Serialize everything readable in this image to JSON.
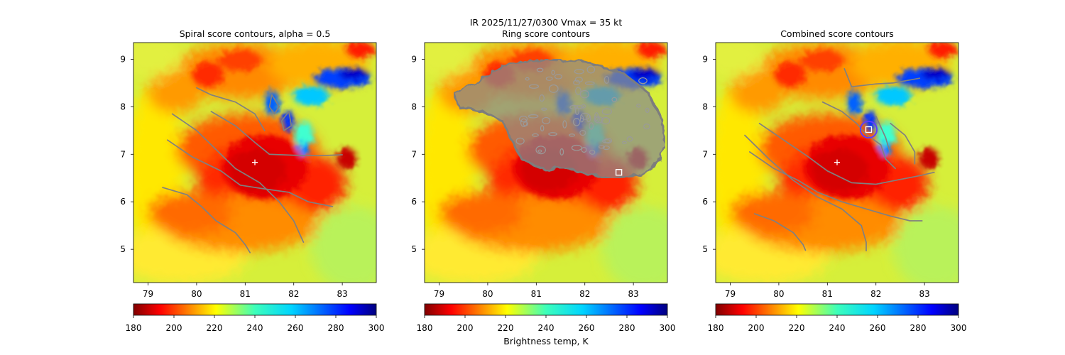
{
  "figure": {
    "suptitle_line1": "IR  2025/11/27/0300    Vmax = 35 kt"
  },
  "chart_data": [
    {
      "type": "heatmap",
      "title": "Spiral score contours, alpha =  0.5",
      "xlim": [
        78.7,
        83.7
      ],
      "ylim": [
        4.3,
        9.35
      ],
      "xticks": [
        "79",
        "80",
        "81",
        "82",
        "83"
      ],
      "yticks": [
        "5",
        "6",
        "7",
        "8",
        "9"
      ],
      "center_marker": {
        "x": 81.2,
        "y": 6.83,
        "symbol": "+"
      },
      "contours": [
        [
          [
            80.3,
            7.9
          ],
          [
            80.8,
            7.6
          ],
          [
            81.2,
            7.25
          ],
          [
            81.5,
            7.0
          ],
          [
            82.0,
            6.98
          ],
          [
            82.5,
            6.97
          ],
          [
            83.0,
            6.99
          ]
        ],
        [
          [
            79.4,
            7.3
          ],
          [
            79.9,
            6.95
          ],
          [
            80.5,
            6.65
          ],
          [
            80.9,
            6.35
          ],
          [
            81.4,
            6.27
          ],
          [
            81.9,
            6.2
          ],
          [
            82.3,
            6.0
          ],
          [
            82.8,
            5.9
          ]
        ],
        [
          [
            79.3,
            6.3
          ],
          [
            79.8,
            6.15
          ],
          [
            80.1,
            5.9
          ],
          [
            80.4,
            5.6
          ],
          [
            80.8,
            5.35
          ],
          [
            81.0,
            5.1
          ],
          [
            81.1,
            4.93
          ]
        ],
        [
          [
            79.5,
            7.85
          ],
          [
            80.0,
            7.5
          ],
          [
            80.4,
            7.1
          ],
          [
            80.8,
            6.7
          ],
          [
            81.3,
            6.4
          ],
          [
            81.7,
            6.0
          ],
          [
            82.0,
            5.6
          ],
          [
            82.2,
            5.15
          ]
        ],
        [
          [
            80.0,
            8.4
          ],
          [
            80.3,
            8.25
          ],
          [
            80.8,
            8.1
          ],
          [
            81.2,
            7.85
          ],
          [
            81.4,
            7.5
          ]
        ],
        [
          [
            81.55,
            8.25
          ],
          [
            81.7,
            8.0
          ],
          [
            81.6,
            7.85
          ],
          [
            81.5,
            8.0
          ],
          [
            81.55,
            8.25
          ]
        ],
        [
          [
            81.9,
            7.9
          ],
          [
            81.95,
            7.6
          ],
          [
            81.8,
            7.5
          ],
          [
            81.75,
            7.7
          ],
          [
            81.9,
            7.9
          ]
        ]
      ],
      "colorbar": {
        "range": [
          180,
          300
        ],
        "ticks": [
          "180",
          "200",
          "220",
          "240",
          "260",
          "280",
          "300"
        ],
        "label": ""
      }
    },
    {
      "type": "heatmap",
      "title": "Ring score contours",
      "xlim": [
        78.7,
        83.7
      ],
      "ylim": [
        4.3,
        9.35
      ],
      "xticks": [
        "79",
        "80",
        "81",
        "82",
        "83"
      ],
      "yticks": [
        "5",
        "6",
        "7",
        "8",
        "9"
      ],
      "square_marker": {
        "x": 82.7,
        "y": 6.62,
        "symbol": "square"
      },
      "ring_region": {
        "outline": [
          [
            79.3,
            8.3
          ],
          [
            79.9,
            8.6
          ],
          [
            80.4,
            8.9
          ],
          [
            81.2,
            9.0
          ],
          [
            82.0,
            8.95
          ],
          [
            82.8,
            8.7
          ],
          [
            83.3,
            8.3
          ],
          [
            83.6,
            7.7
          ],
          [
            83.65,
            7.2
          ],
          [
            83.5,
            6.8
          ],
          [
            83.1,
            6.55
          ],
          [
            82.5,
            6.5
          ],
          [
            82.0,
            6.6
          ],
          [
            81.6,
            6.7
          ],
          [
            81.1,
            6.7
          ],
          [
            80.7,
            6.9
          ],
          [
            80.5,
            7.3
          ],
          [
            80.3,
            7.7
          ],
          [
            79.9,
            7.9
          ],
          [
            79.4,
            8.0
          ]
        ],
        "fill_color": "#8a8a8a"
      },
      "colorbar": {
        "range": [
          180,
          300
        ],
        "ticks": [
          "180",
          "200",
          "220",
          "240",
          "260",
          "280",
          "300"
        ],
        "label": "Brightness temp, K"
      }
    },
    {
      "type": "heatmap",
      "title": "Combined score contours",
      "xlim": [
        78.7,
        83.7
      ],
      "ylim": [
        4.3,
        9.35
      ],
      "xticks": [
        "79",
        "80",
        "81",
        "82",
        "83"
      ],
      "yticks": [
        "5",
        "6",
        "7",
        "8",
        "9"
      ],
      "center_marker": {
        "x": 81.2,
        "y": 6.83,
        "symbol": "+"
      },
      "square_marker": {
        "x": 81.85,
        "y": 7.52,
        "symbol": "square"
      },
      "circle_marker": {
        "x": 81.85,
        "y": 7.52,
        "radius": 0.17,
        "color": "#5b3cff"
      },
      "contours": [
        [
          [
            79.6,
            7.65
          ],
          [
            80.1,
            7.3
          ],
          [
            80.6,
            6.95
          ],
          [
            81.0,
            6.65
          ],
          [
            81.5,
            6.4
          ],
          [
            82.0,
            6.37
          ],
          [
            82.4,
            6.45
          ],
          [
            82.9,
            6.55
          ],
          [
            83.2,
            6.62
          ]
        ],
        [
          [
            79.4,
            7.05
          ],
          [
            79.9,
            6.7
          ],
          [
            80.4,
            6.45
          ],
          [
            80.8,
            6.2
          ],
          [
            81.3,
            6.0
          ],
          [
            81.8,
            5.85
          ],
          [
            82.3,
            5.7
          ],
          [
            82.7,
            5.6
          ],
          [
            82.95,
            5.6
          ]
        ],
        [
          [
            79.5,
            5.75
          ],
          [
            79.9,
            5.6
          ],
          [
            80.3,
            5.35
          ],
          [
            80.5,
            5.1
          ],
          [
            80.55,
            4.98
          ]
        ],
        [
          [
            79.3,
            7.4
          ],
          [
            79.8,
            6.9
          ],
          [
            80.3,
            6.45
          ],
          [
            80.8,
            6.1
          ],
          [
            81.3,
            5.85
          ],
          [
            81.7,
            5.5
          ],
          [
            81.8,
            5.15
          ],
          [
            81.8,
            4.97
          ]
        ],
        [
          [
            80.9,
            8.1
          ],
          [
            81.3,
            7.9
          ],
          [
            81.6,
            7.65
          ],
          [
            81.8,
            7.42
          ],
          [
            82.1,
            7.2
          ],
          [
            82.2,
            6.9
          ],
          [
            82.4,
            6.7
          ]
        ],
        [
          [
            81.35,
            8.8
          ],
          [
            81.5,
            8.42
          ],
          [
            82.0,
            8.48
          ],
          [
            82.35,
            8.5
          ],
          [
            82.9,
            8.6
          ]
        ],
        [
          [
            82.0,
            7.8
          ],
          [
            82.2,
            7.35
          ],
          [
            82.3,
            7.0
          ]
        ],
        [
          [
            82.3,
            7.65
          ],
          [
            82.6,
            7.4
          ],
          [
            82.8,
            7.05
          ],
          [
            82.8,
            6.8
          ]
        ]
      ],
      "colorbar": {
        "range": [
          180,
          300
        ],
        "ticks": [
          "180",
          "200",
          "220",
          "240",
          "260",
          "280",
          "300"
        ],
        "label": ""
      }
    }
  ]
}
